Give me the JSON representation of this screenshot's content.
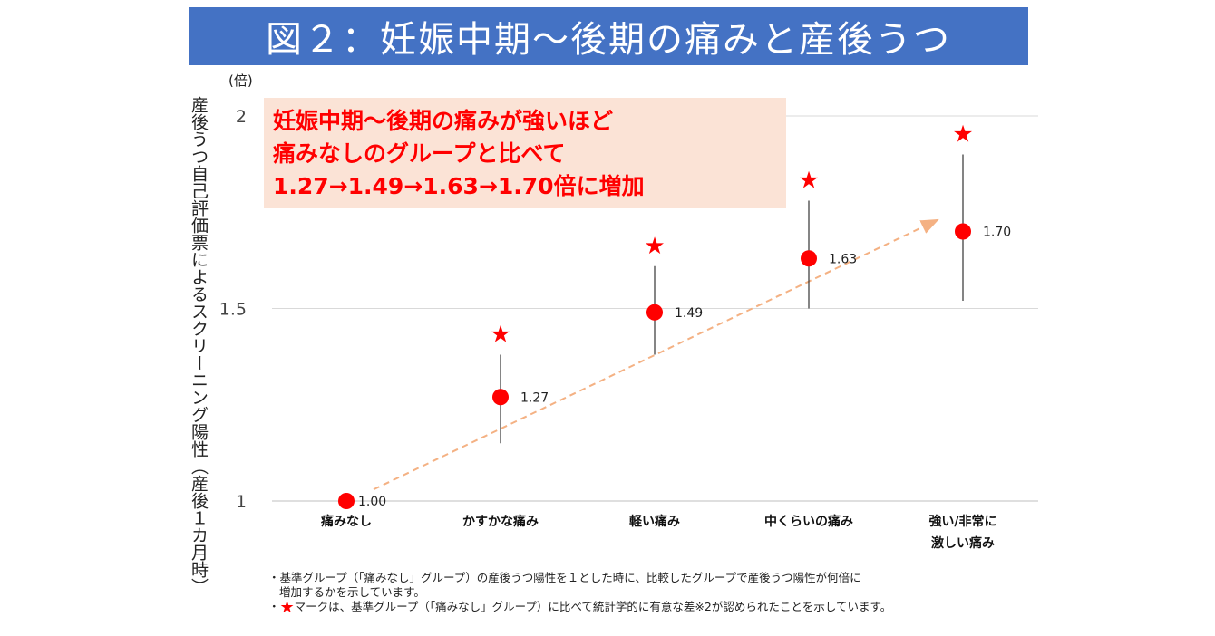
{
  "title": "図２：妊娠中期〜後期の痛みと産後うつ",
  "unit_label": "(倍)",
  "callout": {
    "lines": [
      "妊娠中期〜後期の痛みが強いほど",
      "痛みなしのグループと比べて",
      "1.27→1.49→1.63→1.70倍に増加"
    ]
  },
  "notes": {
    "line1": "・基準グループ（「痛みなし」グループ）の産後うつ陽性を１とした時に、比較したグループで産後うつ陽性が何倍に",
    "line2": "増加するかを示しています。",
    "line3_prefix": "・",
    "line3_star": "★",
    "line3_text": "マークは、基準グループ（「痛みなし」グループ）に比べて統計学的に有意な差※2が認められたことを示しています。"
  },
  "chart_data": {
    "type": "scatter",
    "title": "図２：妊娠中期〜後期の痛みと産後うつ",
    "ylabel": "産後うつ自己評価票によるスクリーニング陽性（産後１カ月時）",
    "xlabel": "",
    "categories": [
      "痛みなし",
      "かすかな痛み",
      "軽い痛み",
      "中くらいの痛み",
      "強い/非常に激しい痛み"
    ],
    "category_label_lines": [
      [
        "痛みなし"
      ],
      [
        "かすかな痛み"
      ],
      [
        "軽い痛み"
      ],
      [
        "中くらいの痛み"
      ],
      [
        "強い/非常に",
        "激しい痛み"
      ]
    ],
    "values": [
      1.0,
      1.27,
      1.49,
      1.63,
      1.7
    ],
    "value_labels": [
      "1.00",
      "1.27",
      "1.49",
      "1.63",
      "1.70"
    ],
    "ci_lower": [
      null,
      1.15,
      1.38,
      1.5,
      1.52
    ],
    "ci_upper": [
      null,
      1.38,
      1.61,
      1.78,
      1.9
    ],
    "significant": [
      false,
      true,
      true,
      true,
      true
    ],
    "ylim": [
      1,
      2
    ],
    "yticks": [
      1,
      1.5,
      2
    ],
    "ytick_labels": [
      "1",
      "1.5",
      "2"
    ],
    "grid": true,
    "colors": {
      "point": "#ff0000",
      "star": "#ff0000",
      "trend": "#f4b183",
      "grid": "#d9d9d9",
      "ci": "#333333"
    }
  }
}
